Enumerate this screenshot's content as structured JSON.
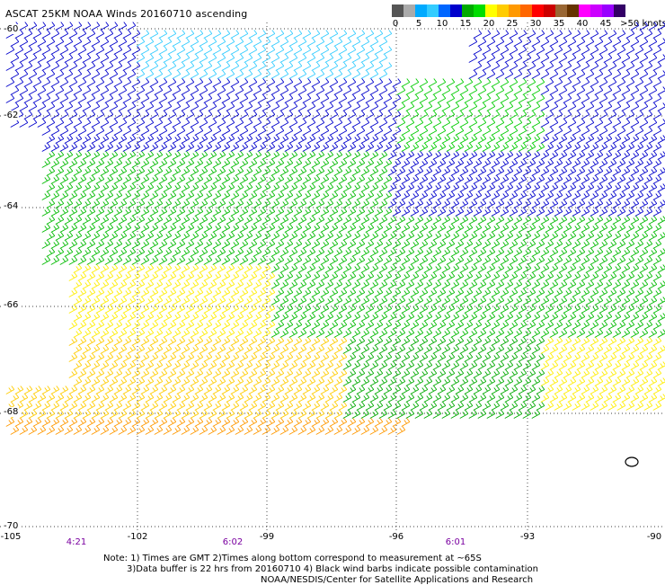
{
  "title": "ASCAT 25KM NOAA Winds 20160710 ascending",
  "legend": {
    "colors": [
      "#555555",
      "#aaaaaa",
      "#00aaff",
      "#33ccff",
      "#0066ff",
      "#0000cc",
      "#00aa00",
      "#00dd00",
      "#ffff00",
      "#ffcc00",
      "#ff9900",
      "#ff6600",
      "#ff0000",
      "#cc0000",
      "#996633",
      "#663300",
      "#ff00ff",
      "#cc00ff",
      "#9900ff",
      "#330066"
    ],
    "labels": [
      "0",
      "5",
      "10",
      "15",
      "20",
      "25",
      "30",
      "35",
      "40",
      "45",
      ">50 knots"
    ]
  },
  "lat_labels": [
    "-60",
    "-62",
    "-64",
    "-66",
    "-68",
    "-70"
  ],
  "lon_labels": [
    "-105",
    "-102",
    "-99",
    "-96",
    "-93",
    "-90"
  ],
  "times": [
    "4:21",
    "6:02",
    "6:01"
  ],
  "notes": {
    "line1": "Note: 1) Times are GMT 2)Times along bottom correspond to measurement at ~65S",
    "line2": "3)Data buffer is 22 hrs from 20160710 4) Black wind barbs indicate possible contamination",
    "line3": "NOAA/NESDIS/Center for Satellite Applications and Research"
  }
}
